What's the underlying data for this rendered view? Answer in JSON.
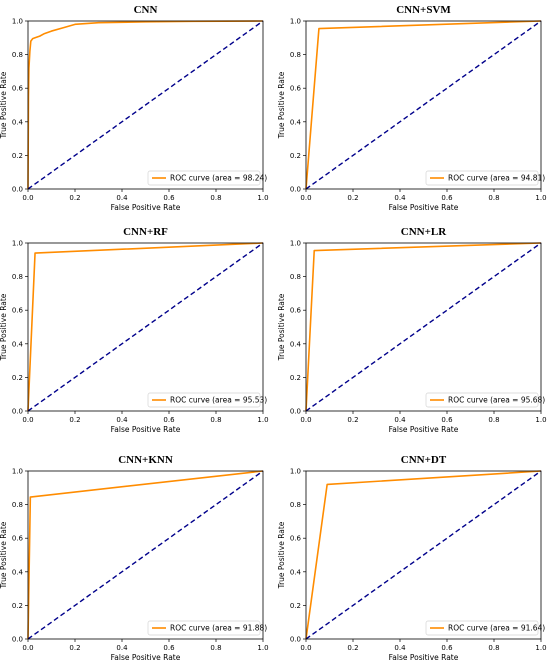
{
  "chart_data": [
    {
      "type": "line",
      "title": "CNN",
      "xlabel": "False Positive Rate",
      "ylabel": "True Positive Rate",
      "xlim": [
        0,
        1
      ],
      "ylim": [
        0,
        1
      ],
      "xticks": [
        "0.0",
        "0.2",
        "0.4",
        "0.6",
        "0.8",
        "1.0"
      ],
      "yticks": [
        "0.0",
        "0.2",
        "0.4",
        "0.6",
        "0.8",
        "1.0"
      ],
      "legend_position": "bottom-right",
      "legend_label": "ROC curve (area = 98.24)",
      "series": [
        {
          "name": "ROC curve (area = 98.24)",
          "color": "#ff8c00",
          "x": [
            0,
            0.002,
            0.004,
            0.008,
            0.012,
            0.02,
            0.03,
            0.05,
            0.07,
            0.1,
            0.15,
            0.2,
            0.3,
            0.5,
            0.7,
            1.0
          ],
          "y": [
            0,
            0.55,
            0.72,
            0.82,
            0.88,
            0.895,
            0.9,
            0.91,
            0.925,
            0.94,
            0.96,
            0.98,
            0.99,
            0.995,
            0.998,
            1.0
          ]
        },
        {
          "name": "",
          "color": "#00008b",
          "x": [
            0,
            1
          ],
          "y": [
            0,
            1
          ],
          "dash": true
        }
      ]
    },
    {
      "type": "line",
      "title": "CNN+SVM",
      "xlabel": "False Positive Rate",
      "ylabel": "True Positive Rate",
      "xlim": [
        0,
        1
      ],
      "ylim": [
        0,
        1
      ],
      "xticks": [
        "0.0",
        "0.2",
        "0.4",
        "0.6",
        "0.8",
        "1.0"
      ],
      "yticks": [
        "0.0",
        "0.2",
        "0.4",
        "0.6",
        "0.8",
        "1.0"
      ],
      "legend_position": "bottom-right",
      "legend_label": "ROC curve (area = 94.81)",
      "series": [
        {
          "name": "ROC curve (area = 94.81)",
          "color": "#ff8c00",
          "x": [
            0,
            0.055,
            1.0
          ],
          "y": [
            0,
            0.955,
            1.0
          ]
        },
        {
          "name": "",
          "color": "#00008b",
          "x": [
            0,
            1
          ],
          "y": [
            0,
            1
          ],
          "dash": true
        }
      ]
    },
    {
      "type": "line",
      "title": "CNN+RF",
      "xlabel": "False Positive Rate",
      "ylabel": "True Positive Rate",
      "xlim": [
        0,
        1
      ],
      "ylim": [
        0,
        1
      ],
      "xticks": [
        "0.0",
        "0.2",
        "0.4",
        "0.6",
        "0.8",
        "1.0"
      ],
      "yticks": [
        "0.0",
        "0.2",
        "0.4",
        "0.6",
        "0.8",
        "1.0"
      ],
      "legend_position": "bottom-right",
      "legend_label": "ROC curve (area = 95.53)",
      "series": [
        {
          "name": "ROC curve (area = 95.53)",
          "color": "#ff8c00",
          "x": [
            0,
            0.03,
            1.0
          ],
          "y": [
            0,
            0.94,
            1.0
          ]
        },
        {
          "name": "",
          "color": "#00008b",
          "x": [
            0,
            1
          ],
          "y": [
            0,
            1
          ],
          "dash": true
        }
      ]
    },
    {
      "type": "line",
      "title": "CNN+LR",
      "xlabel": "False Positive Rate",
      "ylabel": "True Positive Rate",
      "xlim": [
        0,
        1
      ],
      "ylim": [
        0,
        1
      ],
      "xticks": [
        "0.0",
        "0.2",
        "0.4",
        "0.6",
        "0.8",
        "1.0"
      ],
      "yticks": [
        "0.0",
        "0.2",
        "0.4",
        "0.6",
        "0.8",
        "1.0"
      ],
      "legend_position": "bottom-right",
      "legend_label": "ROC curve (area = 95.68)",
      "series": [
        {
          "name": "ROC curve (area = 95.68)",
          "color": "#ff8c00",
          "x": [
            0,
            0.035,
            1.0
          ],
          "y": [
            0,
            0.955,
            1.0
          ]
        },
        {
          "name": "",
          "color": "#00008b",
          "x": [
            0,
            1
          ],
          "y": [
            0,
            1
          ],
          "dash": true
        }
      ]
    },
    {
      "type": "line",
      "title": "CNN+KNN",
      "xlabel": "False Positive Rate",
      "ylabel": "True Positive Rate",
      "xlim": [
        0,
        1
      ],
      "ylim": [
        0,
        1
      ],
      "xticks": [
        "0.0",
        "0.2",
        "0.4",
        "0.6",
        "0.8",
        "1.0"
      ],
      "yticks": [
        "0.0",
        "0.2",
        "0.4",
        "0.6",
        "0.8",
        "1.0"
      ],
      "legend_position": "bottom-right",
      "legend_label": "ROC curve (area = 91.88)",
      "series": [
        {
          "name": "ROC curve (area = 91.88)",
          "color": "#ff8c00",
          "x": [
            0,
            0.01,
            1.0
          ],
          "y": [
            0,
            0.845,
            1.0
          ]
        },
        {
          "name": "",
          "color": "#00008b",
          "x": [
            0,
            1
          ],
          "y": [
            0,
            1
          ],
          "dash": true
        }
      ]
    },
    {
      "type": "line",
      "title": "CNN+DT",
      "xlabel": "False Positive Rate",
      "ylabel": "True Positive Rate",
      "xlim": [
        0,
        1
      ],
      "ylim": [
        0,
        1
      ],
      "xticks": [
        "0.0",
        "0.2",
        "0.4",
        "0.6",
        "0.8",
        "1.0"
      ],
      "yticks": [
        "0.0",
        "0.2",
        "0.4",
        "0.6",
        "0.8",
        "1.0"
      ],
      "legend_position": "bottom-right",
      "legend_label": "ROC curve (area = 91.64)",
      "series": [
        {
          "name": "ROC curve (area = 91.64)",
          "color": "#ff8c00",
          "x": [
            0,
            0.09,
            1.0
          ],
          "y": [
            0,
            0.92,
            1.0
          ]
        },
        {
          "name": "",
          "color": "#00008b",
          "x": [
            0,
            1
          ],
          "y": [
            0,
            1
          ],
          "dash": true
        }
      ]
    }
  ]
}
